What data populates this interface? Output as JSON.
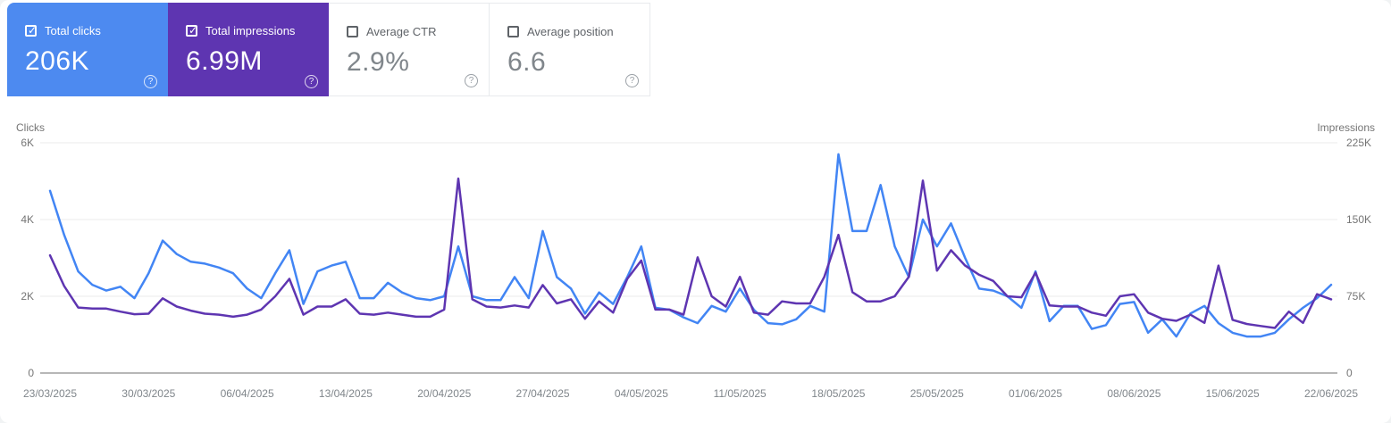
{
  "cards": [
    {
      "label": "Total clicks",
      "value": "206K",
      "selected": true,
      "color": "#4d8af0"
    },
    {
      "label": "Total impressions",
      "value": "6.99M",
      "selected": true,
      "color": "#5e35b1"
    },
    {
      "label": "Average CTR",
      "value": "2.9%",
      "selected": false,
      "color": ""
    },
    {
      "label": "Average position",
      "value": "6.6",
      "selected": false,
      "color": ""
    }
  ],
  "help_icon_glyph": "?",
  "checkbox_glyph": "✓",
  "chart_data": {
    "type": "line",
    "grid": true,
    "x_tick_labels": [
      "23/03/2025",
      "30/03/2025",
      "06/04/2025",
      "13/04/2025",
      "20/04/2025",
      "27/04/2025",
      "04/05/2025",
      "11/05/2025",
      "18/05/2025",
      "25/05/2025",
      "01/06/2025",
      "08/06/2025",
      "15/06/2025",
      "22/06/2025"
    ],
    "x_tick_step_days": 7,
    "left_axis": {
      "title": "Clicks",
      "ticks": [
        "0",
        "2K",
        "4K",
        "6K"
      ],
      "min": 0,
      "max": 6000
    },
    "right_axis": {
      "title": "Impressions",
      "ticks": [
        "0",
        "75K",
        "150K",
        "225K"
      ],
      "min": 0,
      "max": 225000
    },
    "series": [
      {
        "name": "Clicks",
        "axis": "left",
        "color": "#4285f4",
        "values": [
          4750,
          3600,
          2650,
          2300,
          2150,
          2250,
          1950,
          2600,
          3450,
          3100,
          2900,
          2850,
          2750,
          2600,
          2200,
          1950,
          2600,
          3200,
          1800,
          2650,
          2800,
          2900,
          1950,
          1950,
          2350,
          2100,
          1950,
          1900,
          2000,
          3300,
          2000,
          1900,
          1900,
          2500,
          1950,
          3700,
          2500,
          2200,
          1550,
          2100,
          1800,
          2500,
          3300,
          1700,
          1650,
          1450,
          1300,
          1750,
          1600,
          2200,
          1650,
          1300,
          1270,
          1400,
          1750,
          1600,
          5700,
          3700,
          3700,
          4900,
          3300,
          2500,
          4000,
          3300,
          3900,
          3000,
          2200,
          2150,
          2000,
          1700,
          2650,
          1350,
          1750,
          1750,
          1150,
          1250,
          1800,
          1850,
          1050,
          1400,
          950,
          1550,
          1750,
          1300,
          1050,
          950,
          950,
          1050,
          1400,
          1700,
          1950,
          2300
        ]
      },
      {
        "name": "Impressions",
        "axis": "right",
        "color": "#5e35b1",
        "values": [
          115000,
          85000,
          64000,
          63000,
          63000,
          60000,
          57500,
          58000,
          73000,
          65000,
          61000,
          58000,
          57000,
          55000,
          57000,
          62000,
          75000,
          92000,
          57000,
          65000,
          65000,
          72000,
          58000,
          57000,
          59000,
          57000,
          55000,
          55000,
          62000,
          190000,
          72000,
          65000,
          64000,
          66000,
          64000,
          86000,
          68000,
          72000,
          53000,
          70000,
          59000,
          92000,
          110000,
          62000,
          62000,
          57000,
          113000,
          75000,
          65000,
          94000,
          59000,
          57000,
          70000,
          68000,
          68000,
          94000,
          135000,
          79000,
          70000,
          70000,
          75000,
          94000,
          188000,
          100000,
          120000,
          105000,
          96000,
          90000,
          75000,
          74000,
          98000,
          66000,
          65000,
          65000,
          59000,
          56000,
          75000,
          77000,
          59000,
          53000,
          51000,
          57000,
          49000,
          105000,
          52000,
          48000,
          46000,
          44000,
          60000,
          49000,
          77000,
          72000
        ]
      }
    ],
    "colors": {
      "grid": "#ebebeb",
      "baseline": "#b7b7b7",
      "tick_text": "#757575",
      "date_text": "#80868b"
    }
  }
}
